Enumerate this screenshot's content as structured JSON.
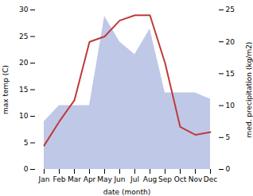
{
  "chart_data": {
    "type": "line",
    "xlabel": "date (month)",
    "ylabel": "max temp (C)",
    "y2label": "med. precipitation (kg/m2)",
    "categories": [
      "Jan",
      "Feb",
      "Mar",
      "Apr",
      "May",
      "Jun",
      "Jul",
      "Aug",
      "Sep",
      "Oct",
      "Nov",
      "Dec"
    ],
    "series": [
      {
        "type": "area",
        "axis": "y2",
        "color": "#c0c8e8",
        "values": [
          7.5,
          10.0,
          10.0,
          10.0,
          24.0,
          20.0,
          18.0,
          22.0,
          12.0,
          12.0,
          12.0,
          11.0
        ]
      },
      {
        "type": "line",
        "color": "#c0393b",
        "values": [
          4.5,
          9.0,
          13.0,
          24.0,
          25.0,
          28.0,
          29.0,
          29.0,
          20.0,
          8.0,
          6.5,
          7.0
        ]
      }
    ],
    "ylim": [
      0,
      30
    ],
    "yticks": [
      0,
      5,
      10,
      15,
      20,
      25,
      30
    ],
    "y2lim": [
      0,
      25
    ],
    "y2ticks": [
      0,
      5,
      10,
      15,
      20,
      25
    ],
    "grid": false
  }
}
